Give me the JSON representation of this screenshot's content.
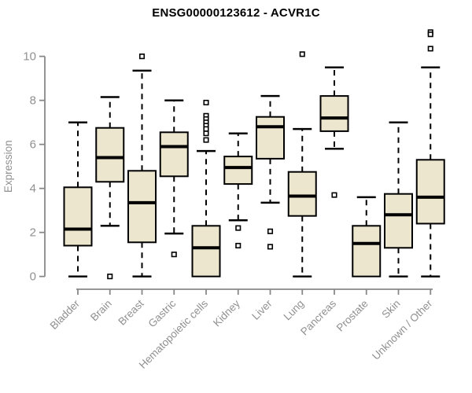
{
  "colors": {
    "box_fill": "#ebe6cd",
    "box_stroke": "#000000",
    "median": "#000000",
    "whisker": "#000000",
    "outlier_stroke": "#000000",
    "outlier_fill": "#ffffff",
    "axis_line": "#888888",
    "tick_label": "#909090",
    "title": "#000000",
    "background": "#ffffff"
  },
  "chart_data": {
    "type": "boxplot",
    "title": "ENSG00000123612 - ACVR1C",
    "xlabel": "",
    "ylabel": "Expression",
    "ylim": [
      0,
      10
    ],
    "yticks": [
      0,
      2,
      4,
      6,
      8,
      10
    ],
    "grid": false,
    "legend": "none",
    "categories": [
      "Bladder",
      "Brain",
      "Breast",
      "Gastric",
      "Hematopoietic cells",
      "Kidney",
      "Liver",
      "Lung",
      "Pancreas",
      "Prostate",
      "Skin",
      "Unknown / Other"
    ],
    "series": [
      {
        "name": "Bladder",
        "low": 0.0,
        "q1": 1.4,
        "median": 2.15,
        "q3": 4.05,
        "high": 7.0,
        "outliers": []
      },
      {
        "name": "Brain",
        "low": 2.3,
        "q1": 4.3,
        "median": 5.4,
        "q3": 6.75,
        "high": 8.15,
        "outliers": [
          0.0
        ]
      },
      {
        "name": "Breast",
        "low": 0.0,
        "q1": 1.55,
        "median": 3.35,
        "q3": 4.8,
        "high": 9.35,
        "outliers": [
          10.0
        ]
      },
      {
        "name": "Gastric",
        "low": 1.95,
        "q1": 4.55,
        "median": 5.9,
        "q3": 6.55,
        "high": 8.0,
        "outliers": [
          1.0
        ]
      },
      {
        "name": "Hematopoietic cells",
        "low": 0.0,
        "q1": 0.0,
        "median": 1.3,
        "q3": 2.3,
        "high": 5.7,
        "outliers": [
          7.9,
          7.3,
          7.15,
          7.0,
          6.85,
          6.7,
          6.5,
          6.2
        ]
      },
      {
        "name": "Kidney",
        "low": 2.55,
        "q1": 4.2,
        "median": 4.95,
        "q3": 5.45,
        "high": 6.5,
        "outliers": [
          2.2,
          1.4
        ]
      },
      {
        "name": "Liver",
        "low": 3.35,
        "q1": 5.35,
        "median": 6.8,
        "q3": 7.25,
        "high": 8.2,
        "outliers": [
          2.05,
          1.35
        ]
      },
      {
        "name": "Lung",
        "low": 0.0,
        "q1": 2.75,
        "median": 3.65,
        "q3": 4.75,
        "high": 6.7,
        "outliers": [
          10.1
        ]
      },
      {
        "name": "Pancreas",
        "low": 5.8,
        "q1": 6.6,
        "median": 7.2,
        "q3": 8.2,
        "high": 9.5,
        "outliers": [
          3.7
        ]
      },
      {
        "name": "Prostate",
        "low": 0.0,
        "q1": 0.0,
        "median": 1.5,
        "q3": 2.3,
        "high": 3.6,
        "outliers": []
      },
      {
        "name": "Skin",
        "low": 0.0,
        "q1": 1.3,
        "median": 2.8,
        "q3": 3.75,
        "high": 7.0,
        "outliers": []
      },
      {
        "name": "Unknown / Other",
        "low": 0.0,
        "q1": 2.4,
        "median": 3.6,
        "q3": 5.3,
        "high": 9.5,
        "outliers": [
          11.1,
          11.0,
          10.35
        ]
      }
    ]
  }
}
